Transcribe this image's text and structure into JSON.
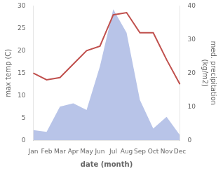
{
  "chart_data": {
    "type": "line",
    "xlabel": "date (month)",
    "ylabel": "max temp (C)",
    "y2label": "med. precipitation\n(kg/m2)",
    "categories": [
      "Jan",
      "Feb",
      "Mar",
      "Apr",
      "May",
      "Jun",
      "Jul",
      "Aug",
      "Sep",
      "Oct",
      "Nov",
      "Dec"
    ],
    "series": [
      {
        "type": "area",
        "axis": "y2",
        "color": "#b8c4e8",
        "values": [
          3.0,
          2.5,
          10.0,
          11.0,
          9.0,
          22.0,
          39.0,
          32.0,
          12.0,
          3.5,
          7.0,
          1.5
        ]
      },
      {
        "type": "line",
        "color": "#c0504d",
        "values": [
          15,
          13.5,
          14,
          17,
          20,
          21,
          28,
          28.5,
          24,
          24,
          18,
          12.5
        ]
      }
    ],
    "ylim": [
      0,
      30
    ],
    "yticks": [
      0,
      5,
      10,
      15,
      20,
      25,
      30
    ],
    "y2lim": [
      0,
      40
    ],
    "y2ticks": [
      0,
      10,
      20,
      30,
      40
    ],
    "grid": false
  }
}
